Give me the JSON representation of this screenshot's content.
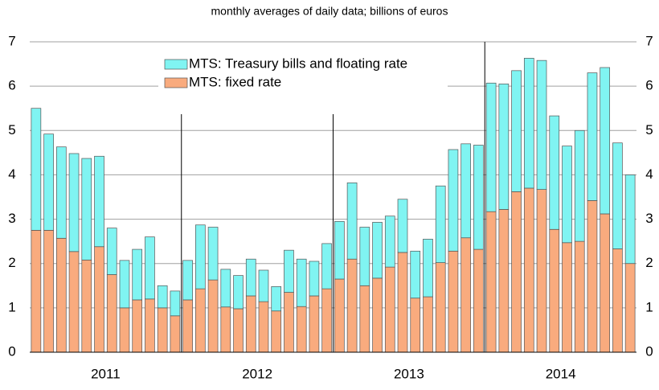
{
  "chart_data": {
    "type": "stacked_bar",
    "subtitle": "monthly averages of daily data; billions of euros",
    "categories": [
      null,
      null,
      null,
      null,
      null,
      null,
      null,
      null,
      null,
      null,
      null,
      null,
      null,
      null,
      null,
      null,
      null,
      null,
      null,
      null,
      null,
      null,
      null,
      null,
      null,
      null,
      null,
      null,
      null,
      null,
      null,
      null,
      null,
      null,
      null,
      null,
      null,
      null,
      null,
      null,
      null,
      null,
      null,
      null,
      null,
      null,
      null,
      null
    ],
    "year_labels": [
      "2011",
      "2012",
      "2013",
      "2014"
    ],
    "series": [
      {
        "name": "MTS: fixed rate",
        "color": "#f9ab7e",
        "values": [
          2.75,
          2.75,
          2.57,
          2.27,
          2.08,
          2.38,
          1.75,
          1.0,
          1.18,
          1.2,
          1.0,
          0.82,
          1.18,
          1.43,
          1.63,
          1.02,
          0.98,
          1.27,
          1.14,
          0.93,
          1.35,
          1.03,
          1.27,
          1.43,
          1.65,
          2.1,
          1.5,
          1.67,
          1.92,
          2.25,
          1.22,
          1.25,
          2.02,
          2.28,
          2.58,
          2.32,
          3.17,
          3.22,
          3.62,
          3.7,
          3.67,
          2.77,
          2.47,
          2.5,
          3.42,
          3.12,
          2.33,
          2.0
        ]
      },
      {
        "name": "MTS: Treasury bills and floating rate",
        "color": "#80f4f2",
        "values": [
          2.75,
          2.17,
          2.06,
          2.21,
          2.29,
          2.04,
          1.05,
          1.07,
          1.14,
          1.4,
          0.5,
          0.56,
          0.89,
          1.44,
          1.19,
          0.85,
          0.75,
          0.83,
          0.71,
          0.55,
          0.95,
          1.07,
          0.78,
          1.02,
          1.3,
          1.72,
          1.32,
          1.26,
          1.15,
          1.2,
          1.06,
          1.3,
          1.73,
          2.29,
          2.12,
          2.35,
          2.9,
          2.83,
          2.73,
          2.93,
          2.91,
          2.56,
          2.18,
          2.5,
          2.88,
          3.3,
          2.39,
          2.0
        ]
      }
    ],
    "ylim": [
      0,
      7
    ],
    "yticks": [
      0,
      1,
      2,
      3,
      4,
      5,
      6,
      7
    ],
    "y2lim": [
      0,
      7
    ],
    "y2ticks": [
      0,
      1,
      2,
      3,
      4,
      5,
      6,
      7
    ],
    "grid": true
  }
}
